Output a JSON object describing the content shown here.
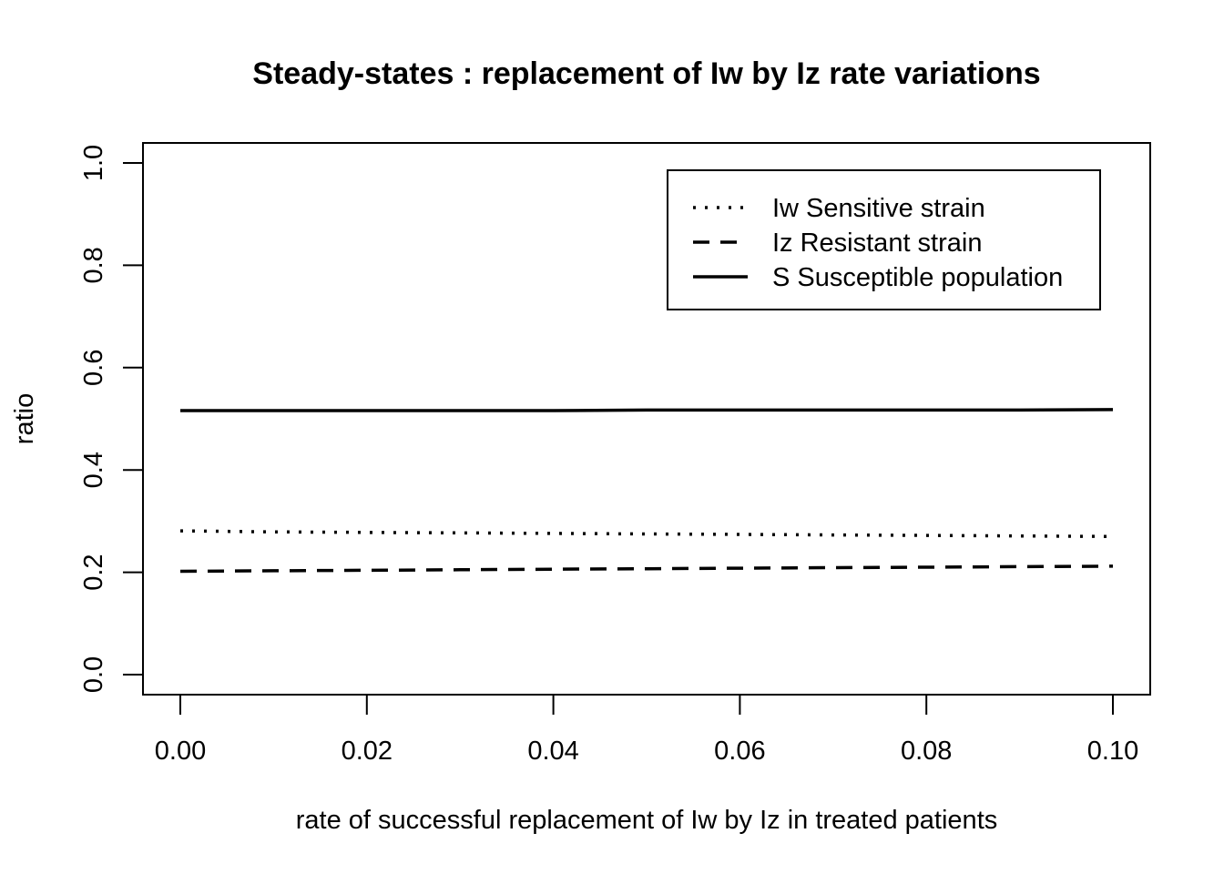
{
  "chart_data": {
    "type": "line",
    "title": "Steady-states : replacement of Iw by Iz rate variations",
    "xlabel": "rate of successful replacement of Iw by Iz in treated patients",
    "ylabel": "ratio",
    "xlim": [
      0.0,
      0.1
    ],
    "ylim": [
      0.0,
      1.0
    ],
    "x_ticks": [
      "0.00",
      "0.02",
      "0.04",
      "0.06",
      "0.08",
      "0.10"
    ],
    "y_ticks": [
      "0.0",
      "0.2",
      "0.4",
      "0.6",
      "0.8",
      "1.0"
    ],
    "grid": false,
    "legend_position": "top-right",
    "x": [
      0.0,
      0.01,
      0.02,
      0.03,
      0.04,
      0.05,
      0.06,
      0.07,
      0.08,
      0.09,
      0.1
    ],
    "series": [
      {
        "name": "Iw Sensitive strain",
        "line_style": "dotted",
        "values": [
          0.281,
          0.279,
          0.278,
          0.277,
          0.276,
          0.275,
          0.274,
          0.273,
          0.272,
          0.271,
          0.27
        ]
      },
      {
        "name": "Iz Resistant strain",
        "line_style": "dashed",
        "values": [
          0.202,
          0.203,
          0.204,
          0.205,
          0.206,
          0.207,
          0.208,
          0.209,
          0.21,
          0.211,
          0.212
        ]
      },
      {
        "name": "S Susceptible population",
        "line_style": "solid",
        "values": [
          0.516,
          0.516,
          0.516,
          0.516,
          0.516,
          0.517,
          0.517,
          0.517,
          0.517,
          0.517,
          0.518
        ]
      }
    ]
  }
}
